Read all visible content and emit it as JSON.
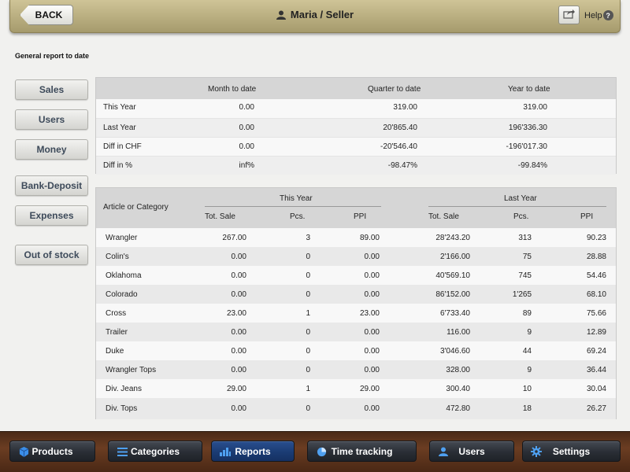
{
  "header": {
    "back_label": "BACK",
    "title": "Maria / Seller",
    "help_label": "Help"
  },
  "page_title": "General report to date",
  "side_buttons": [
    "Sales",
    "Users",
    "Money",
    "Bank-Deposit",
    "Expenses",
    "Out of stock"
  ],
  "summary": {
    "columns": [
      "Month to date",
      "Quarter to date",
      "Year to date"
    ],
    "rows": [
      {
        "label": "This Year",
        "values": [
          "0.00",
          "319.00",
          "319.00"
        ]
      },
      {
        "label": "Last Year",
        "values": [
          "0.00",
          "20'865.40",
          "196'336.30"
        ]
      },
      {
        "label": "Diff in CHF",
        "values": [
          "0.00",
          "-20'546.40",
          "-196'017.30"
        ]
      },
      {
        "label": "Diff in %",
        "values": [
          "inf%",
          "-98.47%",
          "-99.84%"
        ]
      }
    ]
  },
  "detail": {
    "first_col": "Article or Category",
    "group_this_year": "This Year",
    "group_last_year": "Last Year",
    "sub_columns": [
      "Tot. Sale",
      "Pcs.",
      "PPI"
    ],
    "rows": [
      {
        "name": "Wrangler",
        "ty": [
          "267.00",
          "3",
          "89.00"
        ],
        "ly": [
          "28'243.20",
          "313",
          "90.23"
        ]
      },
      {
        "name": "Colin's",
        "ty": [
          "0.00",
          "0",
          "0.00"
        ],
        "ly": [
          "2'166.00",
          "75",
          "28.88"
        ]
      },
      {
        "name": "Oklahoma",
        "ty": [
          "0.00",
          "0",
          "0.00"
        ],
        "ly": [
          "40'569.10",
          "745",
          "54.46"
        ]
      },
      {
        "name": "Colorado",
        "ty": [
          "0.00",
          "0",
          "0.00"
        ],
        "ly": [
          "86'152.00",
          "1'265",
          "68.10"
        ]
      },
      {
        "name": "Cross",
        "ty": [
          "23.00",
          "1",
          "23.00"
        ],
        "ly": [
          "6'733.40",
          "89",
          "75.66"
        ]
      },
      {
        "name": "Trailer",
        "ty": [
          "0.00",
          "0",
          "0.00"
        ],
        "ly": [
          "116.00",
          "9",
          "12.89"
        ]
      },
      {
        "name": "Duke",
        "ty": [
          "0.00",
          "0",
          "0.00"
        ],
        "ly": [
          "3'046.60",
          "44",
          "69.24"
        ]
      },
      {
        "name": "Wrangler Tops",
        "ty": [
          "0.00",
          "0",
          "0.00"
        ],
        "ly": [
          "328.00",
          "9",
          "36.44"
        ]
      },
      {
        "name": "Div. Jeans",
        "ty": [
          "29.00",
          "1",
          "29.00"
        ],
        "ly": [
          "300.40",
          "10",
          "30.04"
        ]
      },
      {
        "name": "Div. Tops",
        "ty": [
          "0.00",
          "0",
          "0.00"
        ],
        "ly": [
          "472.80",
          "18",
          "26.27"
        ]
      }
    ]
  },
  "nav": {
    "items": [
      {
        "label": "Products",
        "icon": "cube-icon"
      },
      {
        "label": "Categories",
        "icon": "list-icon"
      },
      {
        "label": "Reports",
        "icon": "chart-icon"
      },
      {
        "label": "Time tracking",
        "icon": "pie-icon"
      },
      {
        "label": "Users",
        "icon": "user-icon"
      },
      {
        "label": "Settings",
        "icon": "gear-icon"
      }
    ],
    "active": "Reports"
  },
  "colors": {
    "header": "#b8ad7f",
    "nav_active": "#1b3c74",
    "nav_bar": "#6b3d22",
    "side_text": "#3d4a5a"
  }
}
